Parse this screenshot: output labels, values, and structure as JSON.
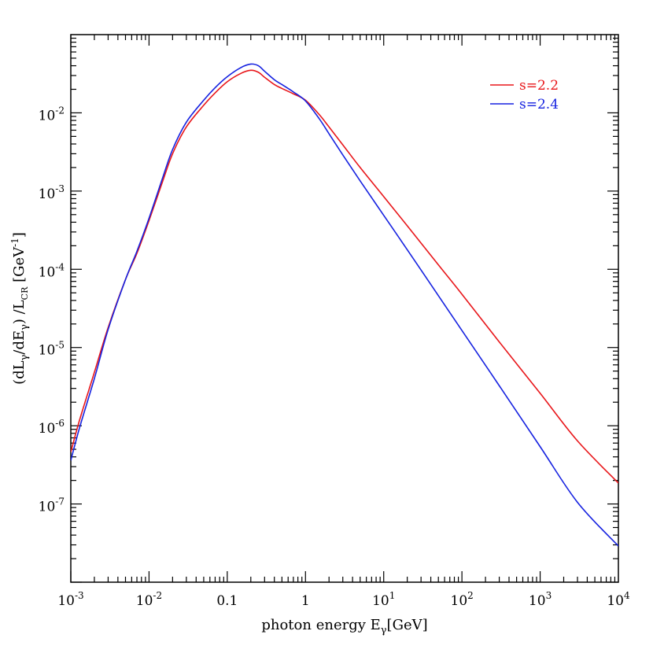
{
  "chart_data": {
    "type": "line",
    "title": "",
    "xlabel": "photon energy E_γ[GeV]",
    "xlabel_parts": {
      "pre": "photon energy E",
      "sub": "γ",
      "post": "[GeV]"
    },
    "ylabel": "(dL_γ/dE_γ) /L_CR [GeV^-1]",
    "ylabel_parts": {
      "p1": "(dL",
      "s1": "γ",
      "p2": "/dE",
      "s2": "γ",
      "p3": ") /L",
      "s3": "CR",
      "p4": " [GeV",
      "sup": "-1",
      "p5": "]"
    },
    "x_scale": "log",
    "y_scale": "log",
    "xlim": [
      0.001,
      10000
    ],
    "ylim": [
      1e-08,
      0.1
    ],
    "grid": false,
    "legend_position": "top-right",
    "x_ticks": [
      {
        "value": 0.001,
        "base": "10",
        "exp": "-3"
      },
      {
        "value": 0.01,
        "base": "10",
        "exp": "-2"
      },
      {
        "value": 0.1,
        "base": "0.1",
        "exp": ""
      },
      {
        "value": 1,
        "base": "1",
        "exp": ""
      },
      {
        "value": 10,
        "base": "10",
        "exp": "1"
      },
      {
        "value": 100,
        "base": "10",
        "exp": "2"
      },
      {
        "value": 1000,
        "base": "10",
        "exp": "3"
      },
      {
        "value": 10000,
        "base": "10",
        "exp": "4"
      }
    ],
    "y_ticks": [
      {
        "value": 1e-07,
        "base": "10",
        "exp": "-7"
      },
      {
        "value": 1e-06,
        "base": "10",
        "exp": "-6"
      },
      {
        "value": 1e-05,
        "base": "10",
        "exp": "-5"
      },
      {
        "value": 0.0001,
        "base": "10",
        "exp": "-4"
      },
      {
        "value": 0.001,
        "base": "10",
        "exp": "-3"
      },
      {
        "value": 0.01,
        "base": "10",
        "exp": "-2"
      }
    ],
    "series": [
      {
        "name": "s=2.2",
        "color": "#e8161a",
        "x": [
          0.001,
          0.0013,
          0.002,
          0.003,
          0.005,
          0.007,
          0.01,
          0.015,
          0.02,
          0.03,
          0.05,
          0.07,
          0.1,
          0.15,
          0.2,
          0.25,
          0.3,
          0.4,
          0.5,
          0.7,
          1,
          1.5,
          2,
          3,
          5,
          10,
          20,
          50,
          100,
          300,
          1000,
          3000,
          10000
        ],
        "y": [
          4.6e-07,
          1.2e-06,
          4.8e-06,
          1.8e-05,
          7.4e-05,
          0.00016,
          0.00042,
          0.00135,
          0.003,
          0.0066,
          0.0125,
          0.018,
          0.025,
          0.032,
          0.035,
          0.033,
          0.0285,
          0.023,
          0.0205,
          0.0175,
          0.0145,
          0.0095,
          0.0066,
          0.0039,
          0.002,
          0.00085,
          0.00036,
          0.000114,
          4.8e-05,
          1.18e-05,
          2.6e-06,
          6.4e-07,
          1.85e-07
        ]
      },
      {
        "name": "s=2.4",
        "color": "#1622e0",
        "x": [
          0.001,
          0.0013,
          0.002,
          0.003,
          0.005,
          0.007,
          0.01,
          0.015,
          0.02,
          0.03,
          0.05,
          0.07,
          0.1,
          0.15,
          0.2,
          0.25,
          0.3,
          0.4,
          0.5,
          0.7,
          1,
          1.5,
          2,
          3,
          5,
          10,
          20,
          50,
          100,
          300,
          1000,
          3000,
          10000
        ],
        "y": [
          3.6e-07,
          9.6e-07,
          4e-06,
          1.7e-05,
          7.4e-05,
          0.00017,
          0.00045,
          0.0015,
          0.0034,
          0.0076,
          0.0145,
          0.021,
          0.029,
          0.038,
          0.042,
          0.04,
          0.034,
          0.0265,
          0.023,
          0.0185,
          0.0142,
          0.0084,
          0.0054,
          0.0029,
          0.00135,
          0.00049,
          0.000178,
          4.6e-05,
          1.65e-05,
          3.25e-06,
          5.4e-07,
          1.05e-07,
          2.9e-08
        ]
      }
    ]
  }
}
